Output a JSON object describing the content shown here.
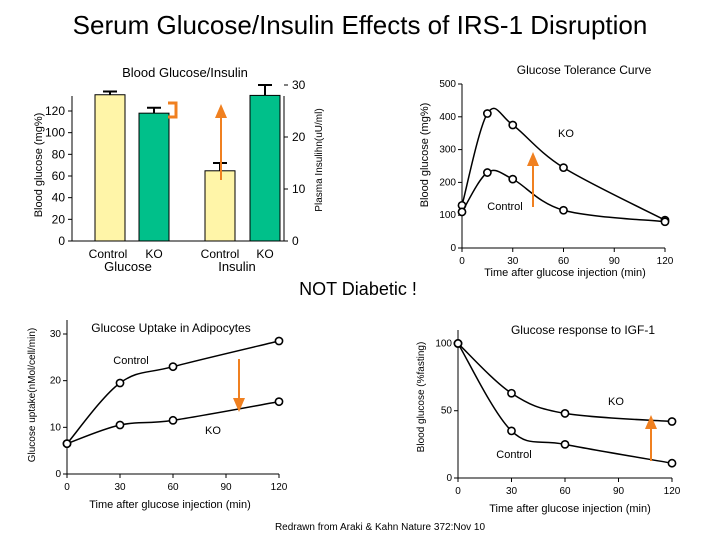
{
  "slide": {
    "title": "Serum Glucose/Insulin Effects of IRS-1 Disruption",
    "annotation": "NOT Diabetic !",
    "citation": "Redrawn from Araki & Kahn Nature 372:Nov 10"
  },
  "colors": {
    "control": "#fff5a8",
    "ko": "#00c08a",
    "arrow": "#f08020",
    "bracket": "#f08020",
    "line": "#000000"
  },
  "chart_data": [
    {
      "type": "bar",
      "title": "Blood Glucose/Insulin",
      "left_axis": {
        "label": "Blood glucose (mg%)",
        "ylim": [
          0,
          130
        ],
        "ticks": [
          0,
          20,
          40,
          60,
          80,
          100,
          120
        ]
      },
      "right_axis": {
        "label": "Plasma Insulihn(uU/ml)",
        "ylim": [
          0,
          32
        ],
        "ticks": [
          0,
          10,
          20,
          30
        ]
      },
      "groups": [
        {
          "name": "Glucose",
          "axis": "left",
          "bars": [
            {
              "name": "Control",
              "value": 135,
              "error": 3
            },
            {
              "name": "KO",
              "value": 118,
              "error": 5
            }
          ]
        },
        {
          "name": "Insulin",
          "axis": "right",
          "bars": [
            {
              "name": "Control",
              "value": 13.5,
              "error": 1.5
            },
            {
              "name": "KO",
              "value": 28,
              "error": 2
            }
          ]
        }
      ]
    },
    {
      "type": "line",
      "title": "Glucose Tolerance Curve",
      "xlabel": "Time after glucose injection (min)",
      "ylabel": "Blood glucose (mg%)",
      "xlim": [
        0,
        120
      ],
      "ylim": [
        0,
        500
      ],
      "xticks": [
        0,
        30,
        60,
        90,
        120
      ],
      "yticks": [
        0,
        100,
        200,
        300,
        400,
        500
      ],
      "series": [
        {
          "name": "KO",
          "x": [
            0,
            15,
            30,
            60,
            120
          ],
          "values": [
            130,
            410,
            375,
            245,
            85
          ]
        },
        {
          "name": "Control",
          "x": [
            0,
            15,
            30,
            60,
            120
          ],
          "values": [
            110,
            230,
            210,
            115,
            80
          ]
        }
      ]
    },
    {
      "type": "line",
      "title": "Glucose Uptake in Adipocytes",
      "xlabel": "Time after glucose injection (min)",
      "ylabel": "Glucose uptake(nMol/cell/min)",
      "xlim": [
        0,
        120
      ],
      "ylim": [
        0,
        33
      ],
      "xticks": [
        0,
        30,
        60,
        90,
        120
      ],
      "yticks": [
        0,
        10,
        20,
        30
      ],
      "series": [
        {
          "name": "Control",
          "x": [
            0,
            30,
            60,
            120
          ],
          "values": [
            6.5,
            19.5,
            23,
            28.5
          ]
        },
        {
          "name": "KO",
          "x": [
            0,
            30,
            60,
            120
          ],
          "values": [
            6.5,
            10.5,
            11.5,
            15.5
          ]
        }
      ]
    },
    {
      "type": "line",
      "title": "Glucose response to IGF-1",
      "xlabel": "Time after glucose injection (min)",
      "ylabel": "Blood glucose (%fasting)",
      "xlim": [
        0,
        120
      ],
      "ylim": [
        0,
        110
      ],
      "xticks": [
        0,
        30,
        60,
        90,
        120
      ],
      "yticks": [
        0,
        50,
        100
      ],
      "series": [
        {
          "name": "KO",
          "x": [
            0,
            30,
            60,
            120
          ],
          "values": [
            100,
            63,
            48,
            42
          ]
        },
        {
          "name": "Control",
          "x": [
            0,
            30,
            60,
            120
          ],
          "values": [
            100,
            35,
            25,
            11
          ]
        }
      ]
    }
  ]
}
